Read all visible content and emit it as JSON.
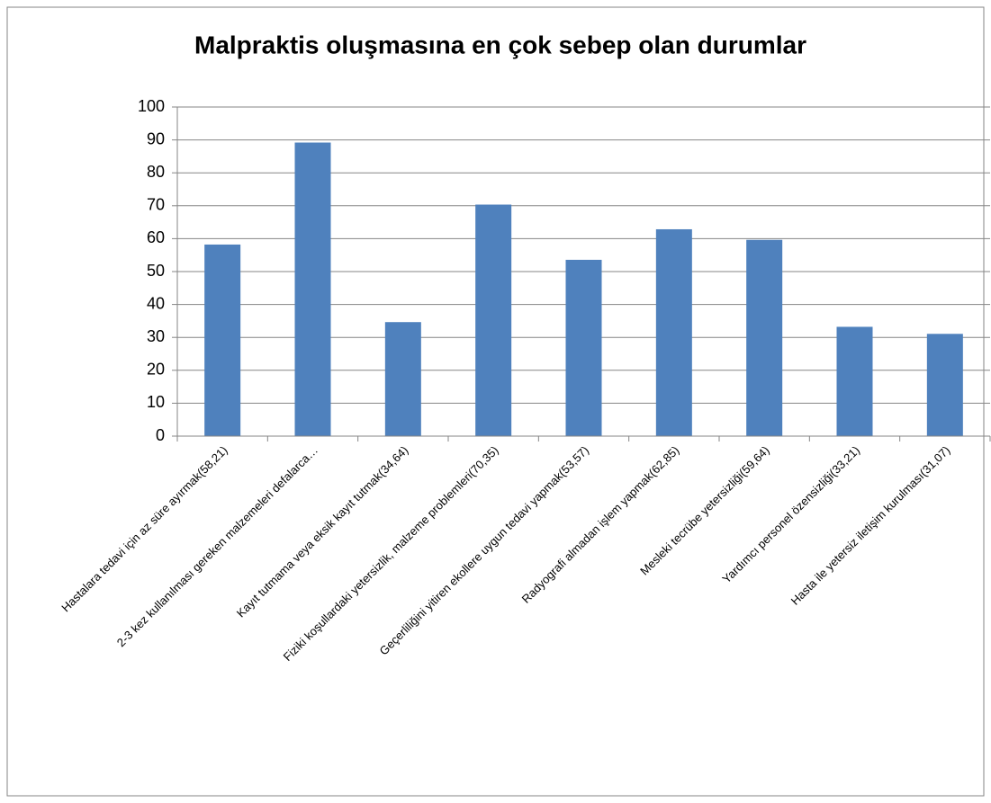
{
  "chart_data": {
    "type": "bar",
    "title": "Malpraktis oluşmasına en çok sebep olan durumlar",
    "categories": [
      "Hastalara tedavi için az süre ayırmak(58,21)",
      "2-3 kez kullanılması gereken malzemeleri defalarca…",
      "Kayıt tutmama veya eksik kayıt tutmak(34,64)",
      "Fiziki koşullardaki yetersizlik, malzeme problemleri(70,35)",
      "Geçerliliğini yitiren ekollere uygun tedavi yapmak(53,57)",
      "Radyografi almadan işlem yapmak(62,85)",
      "Mesleki tecrübe yetersizliği(59,64)",
      "Yardımcı personel özensizliği(33,21)",
      "Hasta ile yetersiz iletişim kurulması(31,07)"
    ],
    "values": [
      58.21,
      89.2,
      34.64,
      70.35,
      53.57,
      62.85,
      59.64,
      33.21,
      31.07
    ],
    "color": "#4f81bd",
    "ylim": [
      0,
      100
    ],
    "yticks": [
      0,
      10,
      20,
      30,
      40,
      50,
      60,
      70,
      80,
      90,
      100
    ],
    "grid": true
  }
}
